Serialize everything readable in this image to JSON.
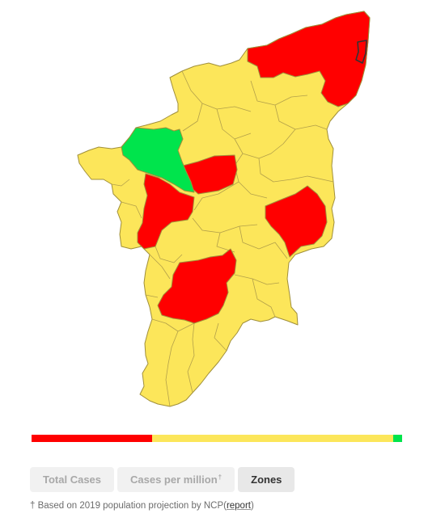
{
  "colors": {
    "red_zone": "#ff0000",
    "orange_zone": "#fce65a",
    "green_zone": "#00e44c",
    "outline": "#a08f3a"
  },
  "zone_bar": [
    {
      "zone": "red",
      "share": 0.325,
      "color": "#ff0000"
    },
    {
      "zone": "orange",
      "share": 0.65,
      "color": "#fce65a"
    },
    {
      "zone": "green",
      "share": 0.025,
      "color": "#00e44c"
    }
  ],
  "tabs": [
    {
      "label": "Total Cases",
      "marker": "",
      "active": false
    },
    {
      "label": "Cases per million",
      "marker": "†",
      "active": false
    },
    {
      "label": "Zones",
      "marker": "",
      "active": true
    }
  ],
  "footnote": {
    "prefix": "† Based on 2019 population projection by NCP(",
    "link": "report",
    "suffix": ")"
  }
}
